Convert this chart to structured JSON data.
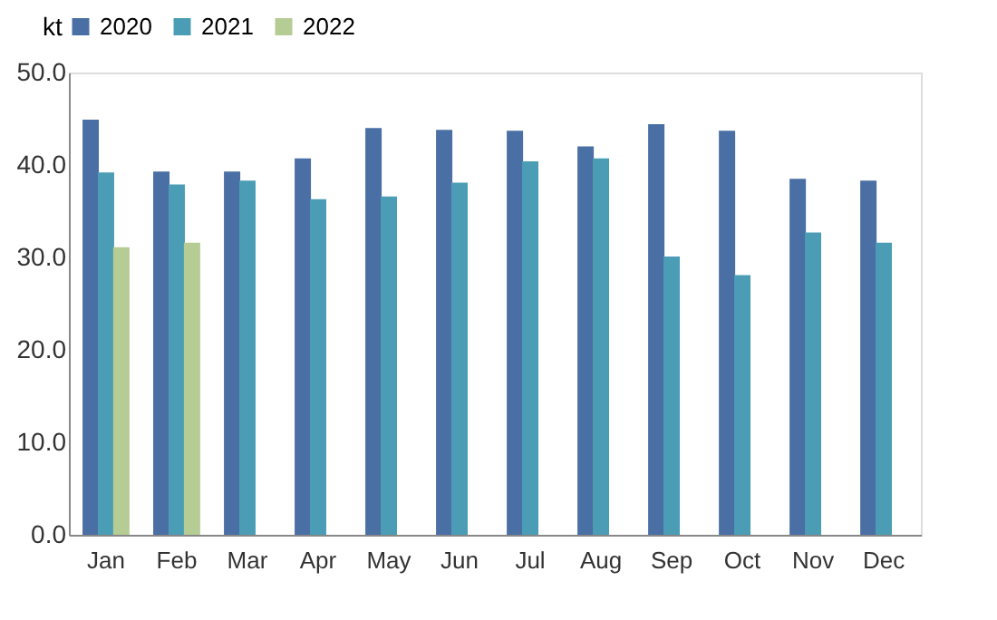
{
  "chart_data": {
    "type": "bar",
    "ylabel": "kt",
    "categories": [
      "Jan",
      "Feb",
      "Mar",
      "Apr",
      "May",
      "Jun",
      "Jul",
      "Aug",
      "Sep",
      "Oct",
      "Nov",
      "Dec"
    ],
    "series": [
      {
        "name": "2020",
        "color": "#4a6fa5",
        "values": [
          44.9,
          39.3,
          39.3,
          40.7,
          44.0,
          43.8,
          43.7,
          42.0,
          44.4,
          43.7,
          38.5,
          38.3
        ]
      },
      {
        "name": "2021",
        "color": "#4a9db5",
        "values": [
          39.2,
          37.9,
          38.3,
          36.3,
          36.6,
          38.1,
          40.4,
          40.7,
          30.1,
          28.1,
          32.7,
          31.6
        ]
      },
      {
        "name": "2022",
        "color": "#b5cc94",
        "values": [
          31.1,
          31.6,
          null,
          null,
          null,
          null,
          null,
          null,
          null,
          null,
          null,
          null
        ]
      }
    ],
    "ylim": [
      0,
      50
    ],
    "yticks": [
      {
        "value": 0,
        "label": "0.0"
      },
      {
        "value": 10,
        "label": "10.0"
      },
      {
        "value": 20,
        "label": "20.0"
      },
      {
        "value": 30,
        "label": "30.0"
      },
      {
        "value": 40,
        "label": "40.0"
      },
      {
        "value": 50,
        "label": "50.0"
      }
    ],
    "grid": false,
    "legend": "top"
  }
}
